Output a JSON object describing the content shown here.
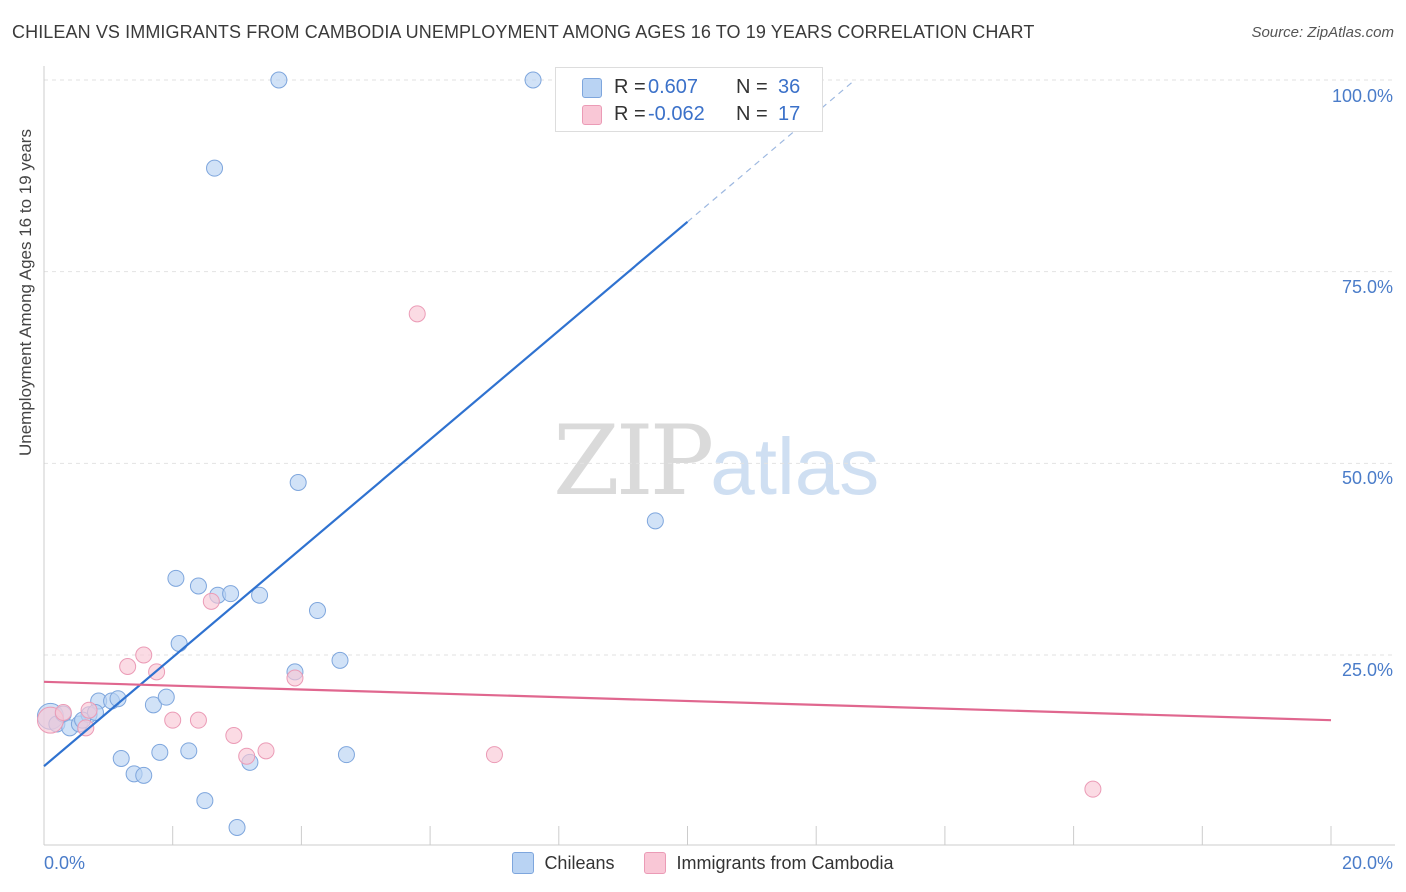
{
  "title": "CHILEAN VS IMMIGRANTS FROM CAMBODIA UNEMPLOYMENT AMONG AGES 16 TO 19 YEARS CORRELATION CHART",
  "source": "Source: ZipAtlas.com",
  "watermark": {
    "zip": "ZIP",
    "atlas": "atlas"
  },
  "stats": {
    "chileans": {
      "r_label": "R =",
      "r_value": "0.607",
      "n_label": "N =",
      "n_value": "36"
    },
    "cambodia": {
      "r_label": "R =",
      "r_value": "-0.062",
      "n_label": "N =",
      "n_value": "17"
    }
  },
  "legend": {
    "chileans": "Chileans",
    "cambodia": "Immigrants from Cambodia"
  },
  "colors": {
    "blue_fill": "#b9d3f3",
    "blue_stroke": "#7ea6dd",
    "blue_line": "#2f72d0",
    "pink_fill": "#f9c7d6",
    "pink_stroke": "#eb9bb6",
    "pink_line": "#e0678f",
    "tick_text": "#4a7cc9",
    "grid": "#e2e2e2"
  },
  "chart_data": {
    "type": "scatter",
    "title": "CHILEAN VS IMMIGRANTS FROM CAMBODIA UNEMPLOYMENT AMONG AGES 16 TO 19 YEARS CORRELATION CHART",
    "xlabel": "",
    "ylabel": "Unemployment Among Ages 16 to 19 years",
    "xlim": [
      0,
      20
    ],
    "ylim": [
      0,
      102
    ],
    "x_tick_labels": [
      "0.0%",
      "20.0%"
    ],
    "y_ticks": [
      25,
      50,
      75,
      100
    ],
    "y_tick_labels": [
      "25.0%",
      "50.0%",
      "75.0%",
      "100.0%"
    ],
    "series": [
      {
        "name": "Chileans",
        "points": [
          [
            0.1,
            17.0
          ],
          [
            0.2,
            16.0
          ],
          [
            0.3,
            17.3
          ],
          [
            0.4,
            15.5
          ],
          [
            0.55,
            16.0
          ],
          [
            0.7,
            17.2
          ],
          [
            0.85,
            19.0
          ],
          [
            1.05,
            19.0
          ],
          [
            1.15,
            19.3
          ],
          [
            1.2,
            11.5
          ],
          [
            1.4,
            9.5
          ],
          [
            1.55,
            9.3
          ],
          [
            1.7,
            18.5
          ],
          [
            1.8,
            12.3
          ],
          [
            1.9,
            19.5
          ],
          [
            2.05,
            35.0
          ],
          [
            2.1,
            26.5
          ],
          [
            2.25,
            12.5
          ],
          [
            2.4,
            34.0
          ],
          [
            2.5,
            6.0
          ],
          [
            2.65,
            88.5
          ],
          [
            2.7,
            32.8
          ],
          [
            2.9,
            33.0
          ],
          [
            3.0,
            2.5
          ],
          [
            3.2,
            11.0
          ],
          [
            3.35,
            32.8
          ],
          [
            3.65,
            100.0
          ],
          [
            3.9,
            22.8
          ],
          [
            3.95,
            47.5
          ],
          [
            4.25,
            30.8
          ],
          [
            4.6,
            24.3
          ],
          [
            4.7,
            12.0
          ],
          [
            7.6,
            100.0
          ],
          [
            9.5,
            42.5
          ],
          [
            0.6,
            16.5
          ],
          [
            0.8,
            17.5
          ]
        ],
        "trend": {
          "x": [
            0,
            10
          ],
          "y": [
            10.5,
            81.5
          ]
        },
        "trend_dashed": {
          "x": [
            10,
            12.6
          ],
          "y": [
            81.5,
            100
          ]
        }
      },
      {
        "name": "Immigrants from Cambodia",
        "points": [
          [
            0.1,
            16.5
          ],
          [
            0.3,
            17.5
          ],
          [
            0.65,
            15.5
          ],
          [
            0.7,
            17.8
          ],
          [
            1.3,
            23.5
          ],
          [
            1.55,
            25.0
          ],
          [
            1.75,
            22.8
          ],
          [
            2.0,
            16.5
          ],
          [
            2.4,
            16.5
          ],
          [
            2.6,
            32.0
          ],
          [
            2.95,
            14.5
          ],
          [
            3.15,
            11.8
          ],
          [
            3.45,
            12.5
          ],
          [
            3.9,
            22.0
          ],
          [
            5.8,
            69.5
          ],
          [
            7.0,
            12.0
          ],
          [
            16.3,
            7.5
          ]
        ],
        "trend": {
          "x": [
            0,
            20
          ],
          "y": [
            21.5,
            16.5
          ]
        }
      }
    ]
  }
}
